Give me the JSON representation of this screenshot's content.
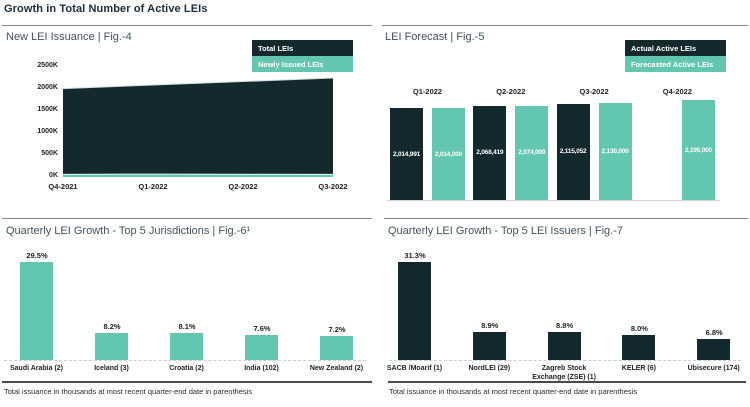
{
  "page": {
    "title": "Growth in Total Number of Active LEIs"
  },
  "colors": {
    "dark": "#14292e",
    "teal": "#63c6b1"
  },
  "footnotes": {
    "left": "Total issuance in thousands at most recent quarter-end date in parenthesis",
    "right": "Total issuance in thousands at most recent quarter-end date in parenthesis"
  },
  "chart_data": [
    {
      "id": "fig4",
      "type": "area",
      "title": "New LEI Issuance | Fig.-4",
      "legend_position": "top-right",
      "grid": false,
      "categories": [
        "Q4-2021",
        "Q1-2022",
        "Q2-2022",
        "Q3-2022"
      ],
      "y_ticks": [
        "0K",
        "500K",
        "1000K",
        "1500K",
        "2000K",
        "2500K"
      ],
      "ylim_thousands": [
        0,
        2500
      ],
      "series": [
        {
          "name": "Total LEIs",
          "color": "dark",
          "values_thousands": [
            2010,
            2090,
            2170,
            2250
          ]
        },
        {
          "name": "Newly Issued LEIs",
          "color": "teal",
          "values_thousands": [
            60,
            65,
            62,
            58
          ]
        }
      ]
    },
    {
      "id": "fig5",
      "type": "bar",
      "title": "LEI Forecast | Fig.-5",
      "legend_position": "top-right",
      "categories": [
        "Q1-2022",
        "Q2-2022",
        "Q3-2022",
        "Q4-2022"
      ],
      "series": [
        {
          "name": "Actual Active LEIs",
          "color": "dark",
          "values": [
            2014991,
            2068419,
            2115052,
            null
          ],
          "labels": [
            "2,014,991",
            "2,068,419",
            "2,115,052",
            ""
          ]
        },
        {
          "name": "Forecasted Active LEIs",
          "color": "teal",
          "values": [
            2014000,
            2074000,
            2130000,
            2195000
          ],
          "labels": [
            "2,014,000",
            "2,074,000",
            "2,130,000",
            "2,195,000"
          ]
        }
      ]
    },
    {
      "id": "fig6",
      "type": "bar",
      "title": "Quarterly LEI Growth - Top 5 Jurisdictions | Fig.-6¹",
      "color": "teal",
      "categories": [
        "Saudi Arabia (2)",
        "Iceland (3)",
        "Croatia (2)",
        "India (102)",
        "New Zealand (2)"
      ],
      "values_percent": [
        29.5,
        8.2,
        8.1,
        7.6,
        7.2
      ],
      "labels": [
        "29.5%",
        "8.2%",
        "8.1%",
        "7.6%",
        "7.2%"
      ]
    },
    {
      "id": "fig7",
      "type": "bar",
      "title": "Quarterly LEI Growth - Top 5 LEI Issuers | Fig.-7",
      "color": "dark",
      "categories": [
        "SACB /Moarif (1)",
        "NordLEI (29)",
        "Zagreb Stock Exchange (ZSE) (1)",
        "KELER (6)",
        "Ubisecure (174)"
      ],
      "values_percent": [
        31.3,
        8.9,
        8.8,
        8.0,
        6.8
      ],
      "labels": [
        "31.3%",
        "8.9%",
        "8.8%",
        "8.0%",
        "6.8%"
      ]
    }
  ]
}
